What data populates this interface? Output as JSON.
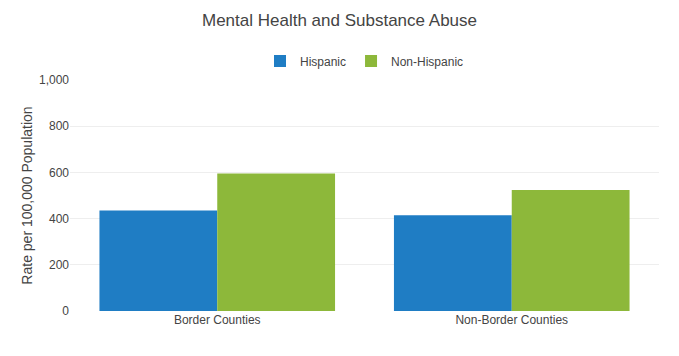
{
  "chart_data": {
    "type": "bar",
    "title": "Mental Health and Substance Abuse",
    "ylabel": "Rate per 100,000 Population",
    "categories": [
      "Border Counties",
      "Non-Border Counties"
    ],
    "series": [
      {
        "name": "Hispanic",
        "values": [
          435,
          414
        ],
        "color": "#1F7DC4"
      },
      {
        "name": "Non-Hispanic",
        "values": [
          595,
          524
        ],
        "color": "#8DB83A"
      }
    ],
    "ylim": [
      0,
      1000
    ],
    "yticks": [
      0,
      200,
      400,
      600,
      800,
      {
        "value": 1000,
        "label": "1,000"
      }
    ],
    "grid": true,
    "legend": "top"
  }
}
